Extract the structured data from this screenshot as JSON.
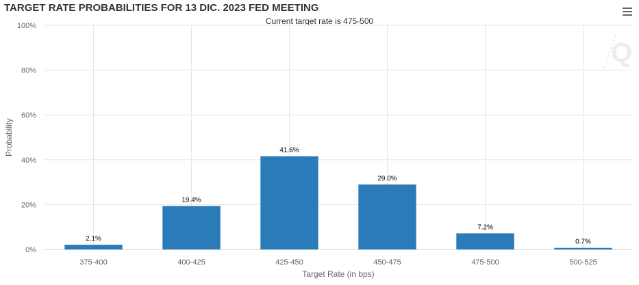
{
  "header": {
    "title": "TARGET RATE PROBABILITIES FOR 13 DIC. 2023 FED MEETING",
    "subtitle": "Current target rate is 475-500"
  },
  "icons": {
    "menu": "hamburger-menu-icon",
    "watermark": "q-logo-icon"
  },
  "colors": {
    "bar": "#2b7bb9",
    "grid": "#e6e6e6",
    "axis_text": "#666666"
  },
  "chart_data": {
    "type": "bar",
    "title": "TARGET RATE PROBABILITIES FOR 13 DIC. 2023 FED MEETING",
    "subtitle": "Current target rate is 475-500",
    "xlabel": "Target Rate (in bps)",
    "ylabel": "Probability",
    "categories": [
      "375-400",
      "400-425",
      "425-450",
      "450-475",
      "475-500",
      "500-525"
    ],
    "values": [
      2.1,
      19.4,
      41.6,
      29.0,
      7.2,
      0.7
    ],
    "data_labels": [
      "2.1%",
      "19.4%",
      "41.6%",
      "29.0%",
      "7.2%",
      "0.7%"
    ],
    "ylim": [
      0,
      100
    ],
    "yticks": [
      0,
      20,
      40,
      60,
      80,
      100
    ],
    "ytick_labels": [
      "0%",
      "20%",
      "40%",
      "60%",
      "80%",
      "100%"
    ],
    "grid": true,
    "legend": "none"
  }
}
